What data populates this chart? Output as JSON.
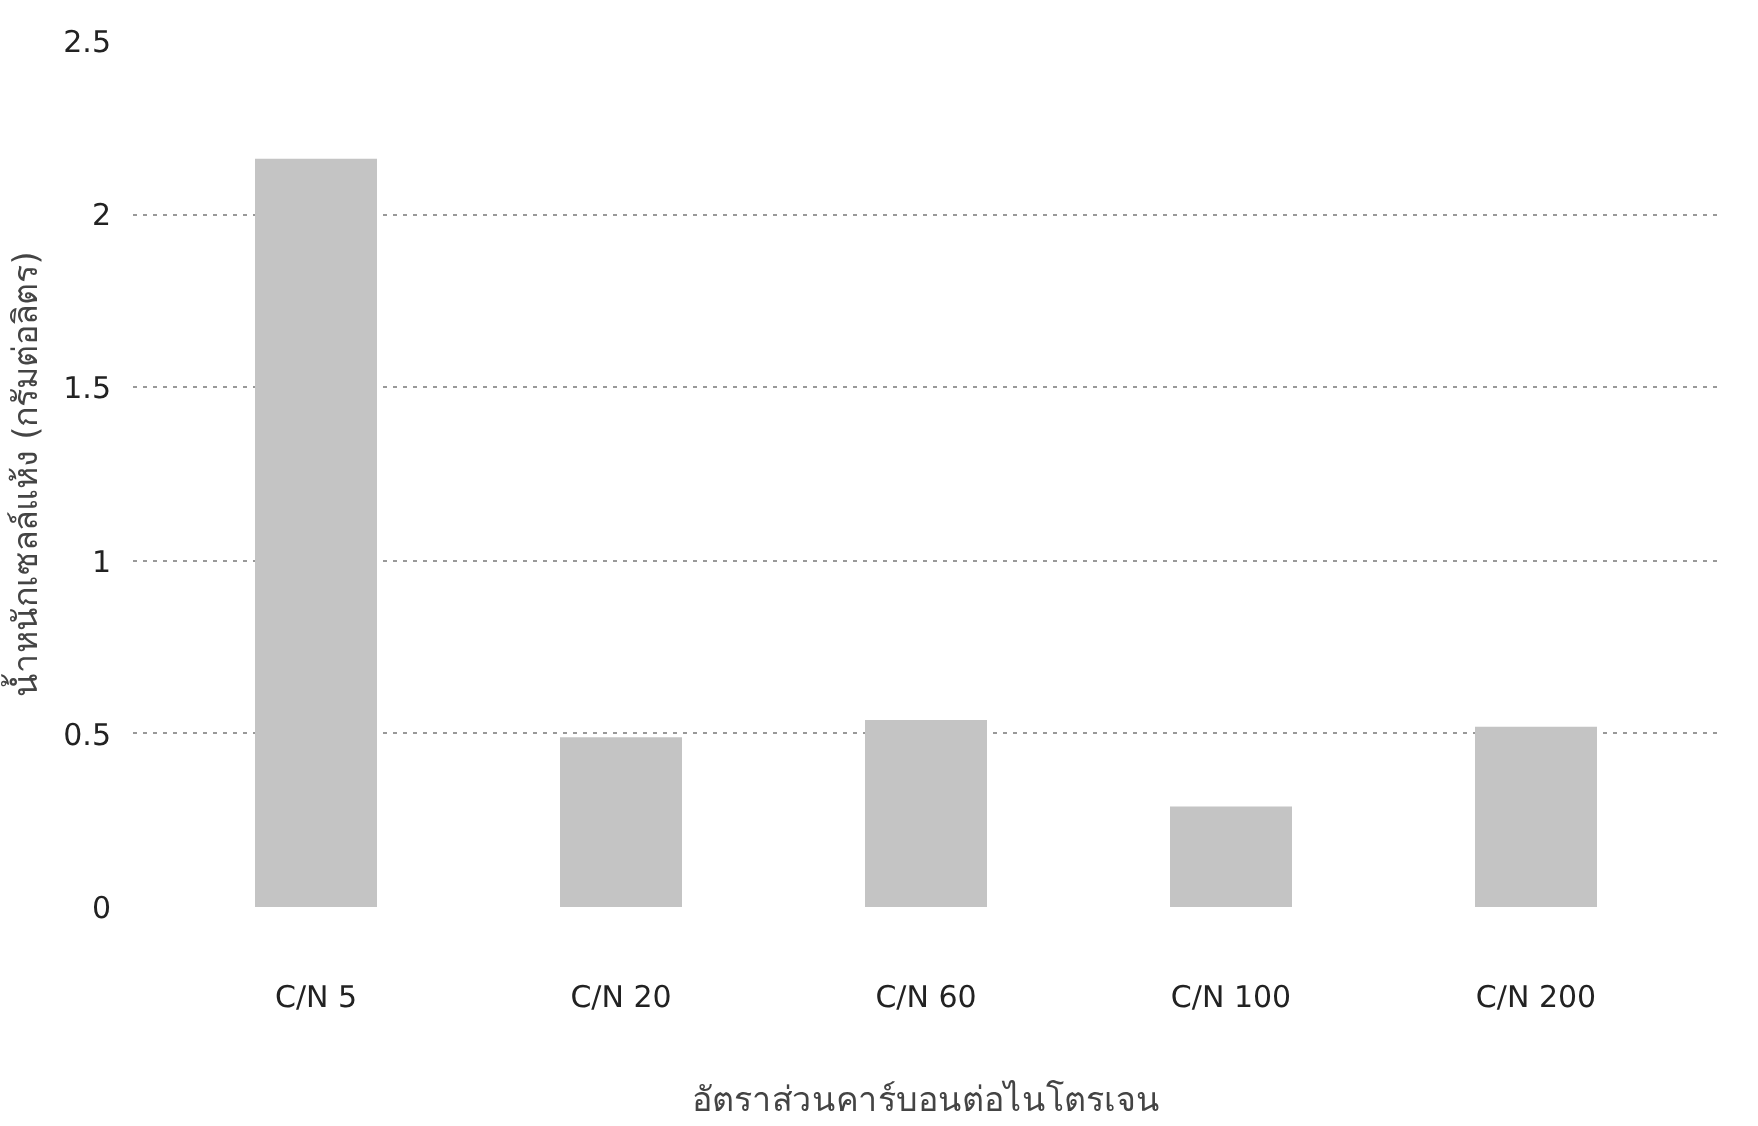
{
  "chart_data": {
    "type": "bar",
    "categories": [
      "C/N 5",
      "C/N 20",
      "C/N 60",
      "C/N 100",
      "C/N 200"
    ],
    "values": [
      2.16,
      0.49,
      0.54,
      0.29,
      0.52
    ],
    "color": "#c4c4c4",
    "xlabel": "อัตราส่วนคาร์บอนต่อไนโตรเจน",
    "ylabel": "น้ำหนักเซลล์แห้ง (กรัมต่อลิตร)",
    "ylim": [
      0,
      2.5
    ],
    "yticks": [
      0,
      0.5,
      1,
      1.5,
      2,
      2.5
    ],
    "grid": "y"
  }
}
